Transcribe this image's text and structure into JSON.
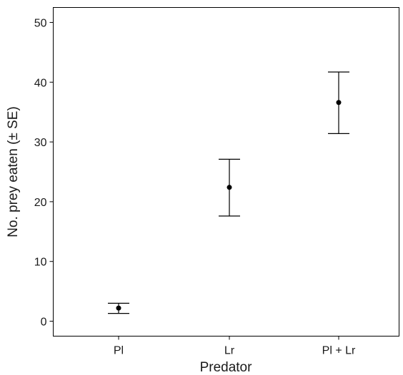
{
  "chart_data": {
    "type": "scatter",
    "xlabel": "Predator",
    "ylabel": "No. prey eaten (± SE)",
    "categories": [
      "Pl",
      "Lr",
      "Pl + Lr"
    ],
    "series": [
      {
        "values": [
          2.2,
          22.4,
          36.6
        ],
        "error_low": [
          1.3,
          17.6,
          31.4
        ],
        "error_high": [
          3.0,
          27.1,
          41.7
        ]
      }
    ],
    "ylim": [
      -2.5,
      52.5
    ],
    "yticks": [
      0,
      10,
      20,
      30,
      40,
      50
    ],
    "grid": false,
    "marker_color": "#000000"
  }
}
